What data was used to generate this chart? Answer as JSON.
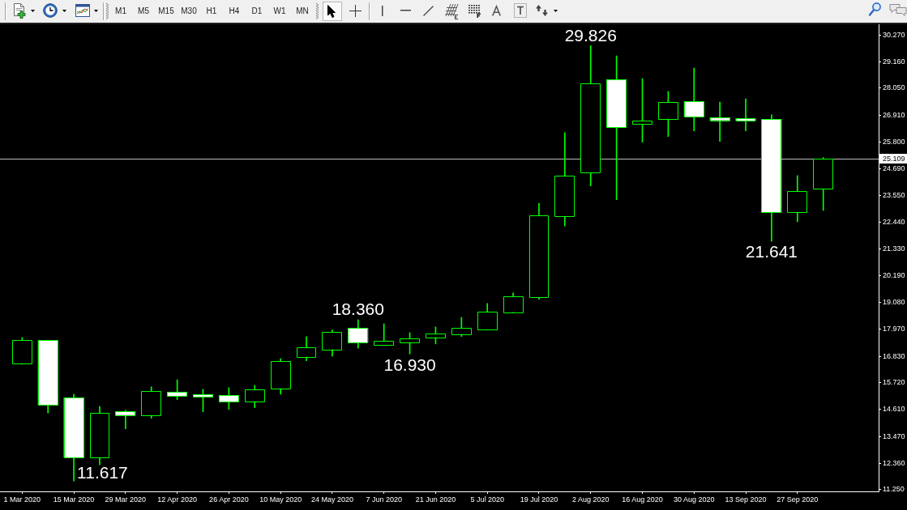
{
  "chart_data": {
    "type": "candlestick",
    "x": [
      "2020-03-01",
      "2020-03-08",
      "2020-03-15",
      "2020-03-22",
      "2020-03-29",
      "2020-04-05",
      "2020-04-12",
      "2020-04-19",
      "2020-04-26",
      "2020-05-03",
      "2020-05-10",
      "2020-05-17",
      "2020-05-24",
      "2020-05-31",
      "2020-06-07",
      "2020-06-14",
      "2020-06-21",
      "2020-06-28",
      "2020-07-05",
      "2020-07-12",
      "2020-07-19",
      "2020-07-26",
      "2020-08-02",
      "2020-08-09",
      "2020-08-16",
      "2020-08-23",
      "2020-08-30",
      "2020-09-06",
      "2020-09-13",
      "2020-09-20",
      "2020-09-27",
      "2020-10-04"
    ],
    "ohlc": [
      [
        16.54,
        17.62,
        16.5,
        17.5
      ],
      [
        17.5,
        17.51,
        14.46,
        14.79
      ],
      [
        15.1,
        15.24,
        11.617,
        12.59
      ],
      [
        12.59,
        14.73,
        12.29,
        14.46
      ],
      [
        14.52,
        14.57,
        13.8,
        14.37
      ],
      [
        14.37,
        15.55,
        14.24,
        15.37
      ],
      [
        15.34,
        15.85,
        15.02,
        15.17
      ],
      [
        15.23,
        15.45,
        14.51,
        15.13
      ],
      [
        15.2,
        15.52,
        14.61,
        14.93
      ],
      [
        14.95,
        15.62,
        14.68,
        15.44
      ],
      [
        15.47,
        16.73,
        15.25,
        16.62
      ],
      [
        16.81,
        17.65,
        16.64,
        17.2
      ],
      [
        17.12,
        17.93,
        16.84,
        17.85
      ],
      [
        18.02,
        18.36,
        17.17,
        17.4
      ],
      [
        17.3,
        18.19,
        17.29,
        17.47
      ],
      [
        17.42,
        17.82,
        16.93,
        17.57
      ],
      [
        17.63,
        18.06,
        17.35,
        17.77
      ],
      [
        17.76,
        18.46,
        17.66,
        18.01
      ],
      [
        17.96,
        19.04,
        17.93,
        18.69
      ],
      [
        18.68,
        19.48,
        18.67,
        19.33
      ],
      [
        19.3,
        23.23,
        19.22,
        22.73
      ],
      [
        22.68,
        26.19,
        22.28,
        24.38
      ],
      [
        24.51,
        29.826,
        23.96,
        28.25
      ],
      [
        28.41,
        29.4,
        23.38,
        26.41
      ],
      [
        26.54,
        28.45,
        25.79,
        26.69
      ],
      [
        26.77,
        27.91,
        26.02,
        27.46
      ],
      [
        27.49,
        28.89,
        26.26,
        26.85
      ],
      [
        26.82,
        27.47,
        25.82,
        26.7
      ],
      [
        26.78,
        27.6,
        26.26,
        26.68
      ],
      [
        26.75,
        26.93,
        21.641,
        22.85
      ],
      [
        22.85,
        24.39,
        22.46,
        23.73
      ],
      [
        23.84,
        25.15,
        22.93,
        25.109
      ]
    ],
    "color": "#00ff00",
    "colors": [
      "#000000",
      "#ffffff",
      "#ffffff",
      "#000000",
      "#ffffff",
      "#000000",
      "#ffffff",
      "#ffffff",
      "#ffffff",
      "#000000",
      "#000000",
      "#000000",
      "#000000",
      "#ffffff",
      "#000000",
      "#000000",
      "#000000",
      "#000000",
      "#000000",
      "#000000",
      "#000000",
      "#000000",
      "#000000",
      "#ffffff",
      "#000000",
      "#000000",
      "#ffffff",
      "#ffffff",
      "#ffffff",
      "#ffffff",
      "#000000",
      "#000000"
    ],
    "xlim": [
      "2020-02-24",
      "2020-10-19"
    ],
    "xticks": [
      {
        "value": "2020-03-01",
        "label": "1 Mar 2020"
      },
      {
        "value": "2020-03-15",
        "label": "15 Mar 2020"
      },
      {
        "value": "2020-03-29",
        "label": "29 Mar 2020"
      },
      {
        "value": "2020-04-12",
        "label": "12 Apr 2020"
      },
      {
        "value": "2020-04-26",
        "label": "26 Apr 2020"
      },
      {
        "value": "2020-05-10",
        "label": "10 May 2020"
      },
      {
        "value": "2020-05-24",
        "label": "24 May 2020"
      },
      {
        "value": "2020-06-07",
        "label": "7 Jun 2020"
      },
      {
        "value": "2020-06-21",
        "label": "21 Jun 2020"
      },
      {
        "value": "2020-07-05",
        "label": "5 Jul 2020"
      },
      {
        "value": "2020-07-19",
        "label": "19 Jul 2020"
      },
      {
        "value": "2020-08-02",
        "label": "2 Aug 2020"
      },
      {
        "value": "2020-08-16",
        "label": "16 Aug 2020"
      },
      {
        "value": "2020-08-30",
        "label": "30 Aug 2020"
      },
      {
        "value": "2020-09-13",
        "label": "13 Sep 2020"
      },
      {
        "value": "2020-09-27",
        "label": "27 Sep 2020"
      }
    ],
    "ylim": [
      11.18,
      30.72
    ],
    "yticks": [
      {
        "value": 30.27,
        "label": "30.270"
      },
      {
        "value": 29.16,
        "label": "29.160"
      },
      {
        "value": 28.05,
        "label": "28.050"
      },
      {
        "value": 26.91,
        "label": "26.910"
      },
      {
        "value": 25.8,
        "label": "25.800"
      },
      {
        "value": 24.69,
        "label": "24.690"
      },
      {
        "value": 23.55,
        "label": "23.550"
      },
      {
        "value": 22.44,
        "label": "22.440"
      },
      {
        "value": 21.33,
        "label": "21.330"
      },
      {
        "value": 20.19,
        "label": "20.190"
      },
      {
        "value": 19.08,
        "label": "19.080"
      },
      {
        "value": 17.97,
        "label": "17.970"
      },
      {
        "value": 16.83,
        "label": "16.830"
      },
      {
        "value": 15.72,
        "label": "15.720"
      },
      {
        "value": 14.61,
        "label": "14.610"
      },
      {
        "value": 13.47,
        "label": "13.470"
      },
      {
        "value": 12.36,
        "label": "12.360"
      },
      {
        "value": 11.25,
        "label": "11.250"
      }
    ],
    "ref_lines": [
      {
        "axis": "y",
        "value": 25.109,
        "label": "25.109",
        "color": "#c0c0c0"
      }
    ],
    "annotations": [
      "M1",
      "M5",
      "M15",
      "M30",
      "H1",
      "H4",
      "D1",
      "W1",
      "MN",
      {
        "text": "29.826",
        "x": "2020-08-02",
        "y": 29.826
      },
      {
        "text": "18.360",
        "x": "2020-05-31",
        "y": 18.36
      },
      {
        "text": "16.930",
        "x": "2020-06-14",
        "y": 16.93
      },
      {
        "text": "11.617",
        "x": "2020-03-15",
        "y": 11.617
      },
      {
        "text": "21.641",
        "x": "2020-09-20",
        "y": 21.641
      }
    ]
  }
}
